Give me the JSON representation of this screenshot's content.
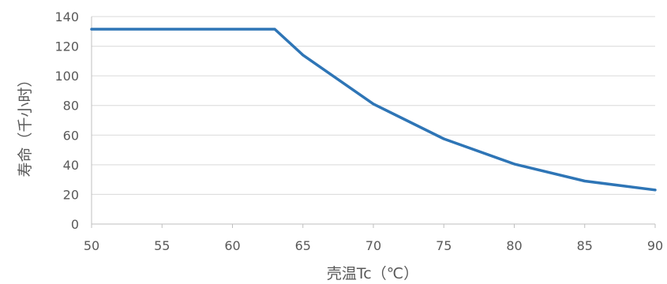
{
  "chart_data": {
    "type": "line",
    "xlabel": "壳温Tc（℃）",
    "ylabel": "寿命（千小时）",
    "xlim": [
      50,
      90
    ],
    "ylim": [
      0,
      140
    ],
    "x_ticks": [
      "50",
      "55",
      "60",
      "65",
      "70",
      "75",
      "80",
      "85",
      "90"
    ],
    "y_ticks": [
      "0",
      "20",
      "40",
      "60",
      "80",
      "100",
      "120",
      "140"
    ],
    "grid": "horizontal",
    "series": [
      {
        "color": "#2e75b6",
        "x": [
          50,
          63,
          65,
          70,
          75,
          80,
          85,
          90
        ],
        "y": [
          131.5,
          131.5,
          114,
          81,
          57.5,
          40.5,
          29,
          23
        ]
      }
    ]
  }
}
